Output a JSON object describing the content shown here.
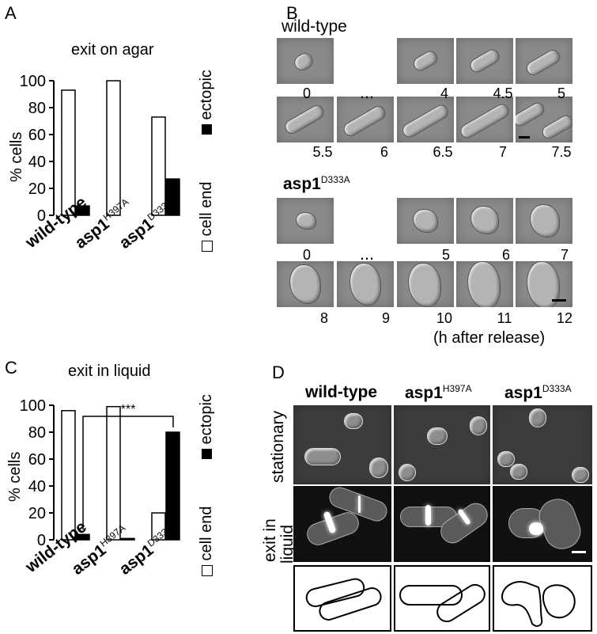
{
  "panelA": {
    "label": "A",
    "title": "exit on agar",
    "ylabel": "% cells",
    "legend_cell_end": "cell end",
    "legend_ectopic": "ectopic",
    "ticks": [
      "0",
      "20",
      "40",
      "60",
      "80",
      "100"
    ],
    "cat_wt": "wild-type",
    "cat_h_base": "asp1",
    "cat_h_sup": "H397A",
    "cat_d_base": "asp1",
    "cat_d_sup": "D333A"
  },
  "panelB": {
    "label": "B",
    "wt_title": "wild-type",
    "mut_base": "asp1",
    "mut_sup": "D333A",
    "wt_row1": [
      "0",
      "...",
      "4",
      "4.5",
      "5"
    ],
    "wt_row2": [
      "5.5",
      "6",
      "6.5",
      "7",
      "7.5"
    ],
    "mut_row1": [
      "0",
      "...",
      "5",
      "6",
      "7"
    ],
    "mut_row2": [
      "8",
      "9",
      "10",
      "11",
      "12"
    ],
    "axis_note": "(h after release)"
  },
  "panelC": {
    "label": "C",
    "title": "exit in liquid",
    "ylabel": "% cells",
    "significance": "***",
    "legend_cell_end": "cell end",
    "legend_ectopic": "ectopic",
    "ticks": [
      "0",
      "20",
      "40",
      "60",
      "80",
      "100"
    ],
    "cat_wt": "wild-type",
    "cat_h_base": "asp1",
    "cat_h_sup": "H397A",
    "cat_d_base": "asp1",
    "cat_d_sup": "D333A"
  },
  "panelD": {
    "label": "D",
    "col_wt": "wild-type",
    "col_h_base": "asp1",
    "col_h_sup": "H397A",
    "col_d_base": "asp1",
    "col_d_sup": "D333A",
    "row_stationary": "stationary",
    "row_exit_1": "exit in",
    "row_exit_2": "liquid"
  },
  "chart_data": [
    {
      "type": "bar",
      "title": "exit on agar",
      "ylabel": "% cells",
      "categories": [
        "wild-type",
        "asp1 H397A",
        "asp1 D333A"
      ],
      "series": [
        {
          "name": "cell end",
          "values": [
            93,
            100,
            73
          ],
          "color": "#ffffff"
        },
        {
          "name": "ectopic",
          "values": [
            7,
            0,
            27
          ],
          "color": "#000000"
        }
      ],
      "ylim": [
        0,
        100
      ]
    },
    {
      "type": "bar",
      "title": "exit in liquid",
      "ylabel": "% cells",
      "categories": [
        "wild-type",
        "asp1 H397A",
        "asp1 D333A"
      ],
      "series": [
        {
          "name": "cell end",
          "values": [
            96,
            99,
            20
          ],
          "color": "#ffffff"
        },
        {
          "name": "ectopic",
          "values": [
            4,
            1,
            80
          ],
          "color": "#000000"
        }
      ],
      "ylim": [
        0,
        100
      ],
      "annotation": "***"
    }
  ]
}
